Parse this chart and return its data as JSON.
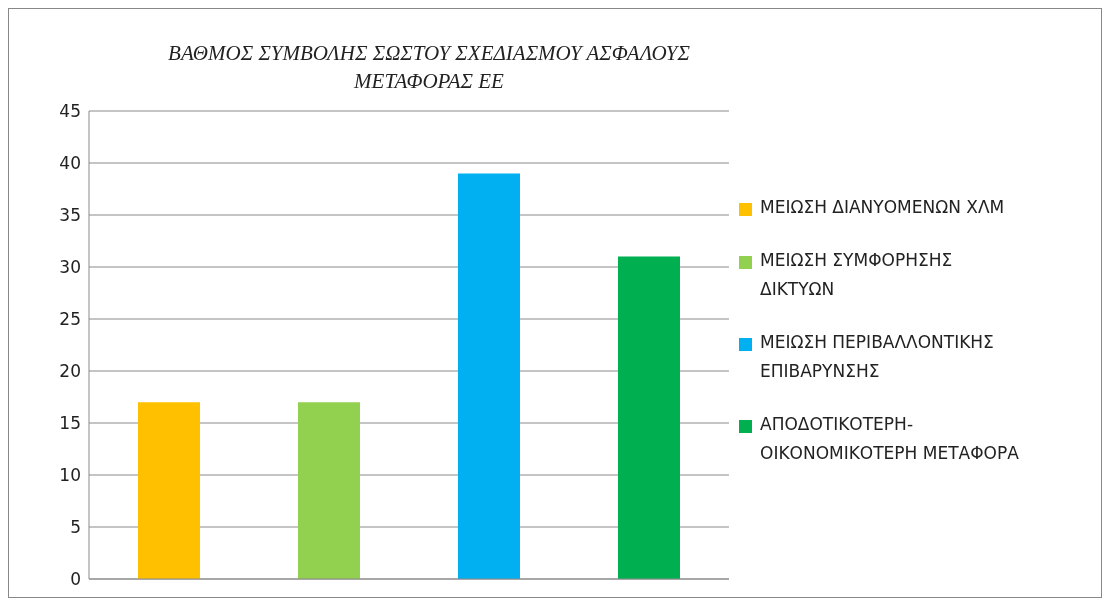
{
  "chart_data": {
    "type": "bar",
    "title": "ΒΑΘΜΟΣ ΣΥΜΒΟΛΗΣ ΣΩΣΤΟΥ ΣΧΕΔΙΑΣΜΟΥ ΑΣΦΑΛΟΥΣ ΜΕΤΑΦΟΡΑΣ ΕΕ",
    "categories": [
      null,
      null,
      null,
      null
    ],
    "series": [
      {
        "name": "ΜΕΙΩΣΗ ΔΙΑΝΥΟΜΕΝΩΝ ΧΛΜ",
        "color": "#ffc000",
        "values": [
          17,
          null,
          null,
          null
        ]
      },
      {
        "name": "ΜΕΙΩΣΗ ΣΥΜΦΟΡΗΣΗΣ ΔΙΚΤΥΩΝ",
        "color": "#92d050",
        "values": [
          null,
          17,
          null,
          null
        ]
      },
      {
        "name": "ΜΕΙΩΣΗ ΠΕΡΙΒΑΛΛΟΝΤΙΚΗΣ ΕΠΙΒΑΡΥΝΣΗΣ",
        "color": "#00b0f0",
        "values": [
          null,
          null,
          39,
          null
        ]
      },
      {
        "name": "ΑΠΟΔΟΤΙΚΟΤΕΡΗ-ΟΙΚΟΝΟΜΙΚΟΤΕΡΗ ΜΕΤΑΦΟΡΑ",
        "color": "#00b050",
        "values": [
          null,
          null,
          null,
          31
        ]
      }
    ],
    "ylim": [
      0,
      45
    ],
    "yticks": [
      0,
      5,
      10,
      15,
      20,
      25,
      30,
      35,
      40,
      45
    ],
    "grid": "y",
    "legend": "right"
  }
}
